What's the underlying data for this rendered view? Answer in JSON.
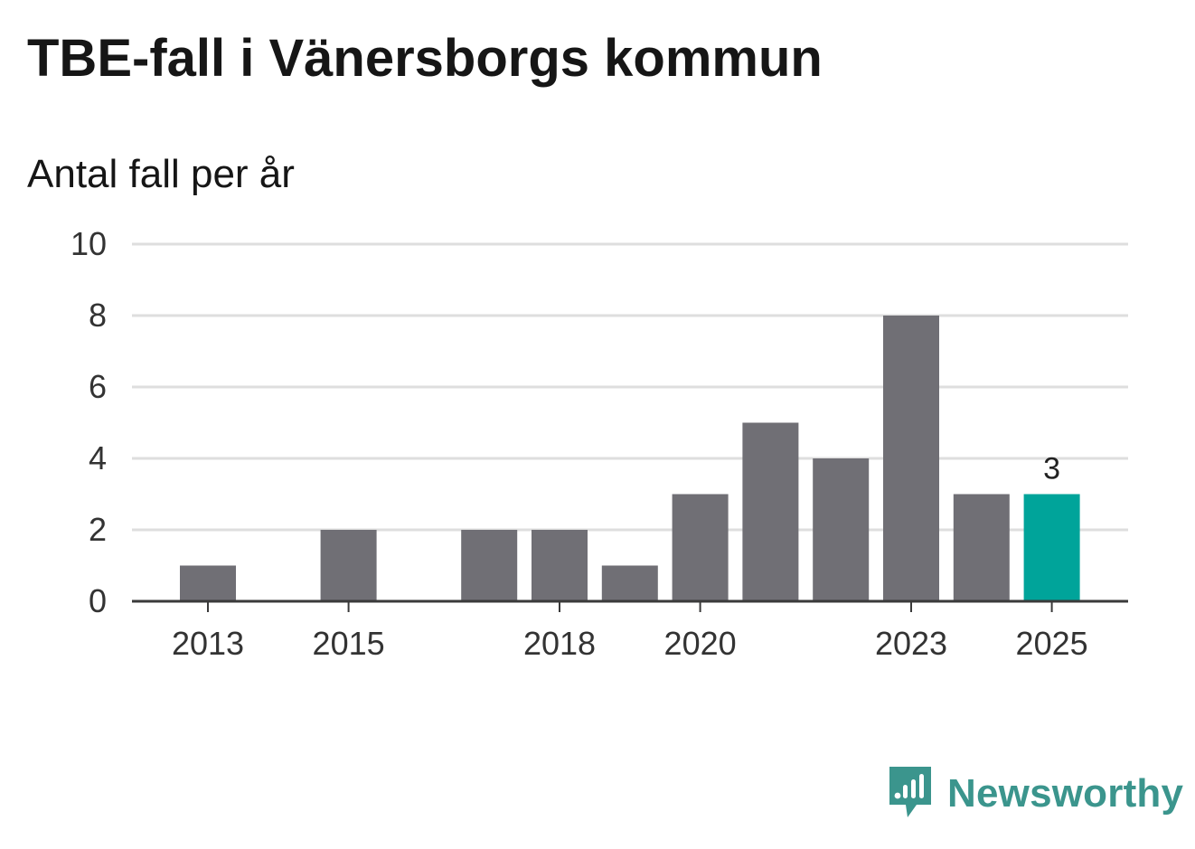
{
  "title": "TBE-fall i Vänersborgs kommun",
  "subtitle": "Antal fall per år",
  "brand": {
    "name": "Newsworthy",
    "icon": "newsworthy-logo-icon",
    "color": "#3b958d"
  },
  "colors": {
    "bar": "#706f75",
    "highlight": "#00a49a",
    "grid": "#dedede",
    "axis": "#3a3a3a"
  },
  "chart_data": {
    "type": "bar",
    "title": "TBE-fall i Vänersborgs kommun",
    "subtitle": "Antal fall per år",
    "xlabel": "",
    "ylabel": "Antal fall per år",
    "categories": [
      "2013",
      "2014",
      "2015",
      "2016",
      "2017",
      "2018",
      "2019",
      "2020",
      "2021",
      "2022",
      "2023",
      "2024",
      "2025"
    ],
    "values": [
      1,
      0,
      2,
      0,
      2,
      2,
      1,
      3,
      5,
      4,
      8,
      3,
      3
    ],
    "highlight_index": 12,
    "value_labels": [
      {
        "index": 12,
        "text": "3"
      }
    ],
    "x_tick_labels": [
      "2013",
      "2015",
      "2018",
      "2020",
      "2023",
      "2025"
    ],
    "y_ticks": [
      0,
      2,
      4,
      6,
      8,
      10
    ],
    "ylim": [
      0,
      10
    ],
    "grid": true,
    "legend": "none"
  }
}
